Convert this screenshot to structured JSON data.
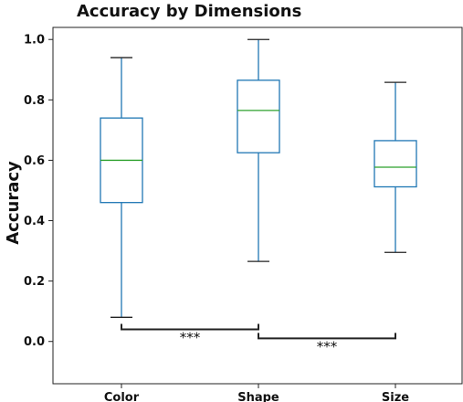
{
  "chart_data": {
    "type": "box",
    "title": "Accuracy by Dimensions",
    "xlabel": "",
    "ylabel": "Accuracy",
    "ylim": [
      -0.14,
      1.04
    ],
    "yticks": [
      0.0,
      0.2,
      0.4,
      0.6,
      0.8,
      1.0
    ],
    "ytick_labels": [
      "0.0",
      "0.2",
      "0.4",
      "0.6",
      "0.8",
      "1.0"
    ],
    "categories": [
      "Color",
      "Shape",
      "Size"
    ],
    "boxes": [
      {
        "category": "Color",
        "whisker_low": 0.08,
        "q1": 0.46,
        "median": 0.6,
        "q3": 0.74,
        "whisker_high": 0.94
      },
      {
        "category": "Shape",
        "whisker_low": 0.265,
        "q1": 0.625,
        "median": 0.765,
        "q3": 0.865,
        "whisker_high": 1.0
      },
      {
        "category": "Size",
        "whisker_low": 0.295,
        "q1": 0.512,
        "median": 0.577,
        "q3": 0.665,
        "whisker_high": 0.858
      }
    ],
    "significance": [
      {
        "from": "Color",
        "to": "Shape",
        "y": 0.04,
        "label": "***"
      },
      {
        "from": "Shape",
        "to": "Size",
        "y": 0.01,
        "label": "***"
      }
    ],
    "colors": {
      "box": "#1f77b4",
      "median": "#2ca02c",
      "whisker_cap": "#222222",
      "bracket": "#222222"
    },
    "grid": false,
    "legend": "none"
  }
}
